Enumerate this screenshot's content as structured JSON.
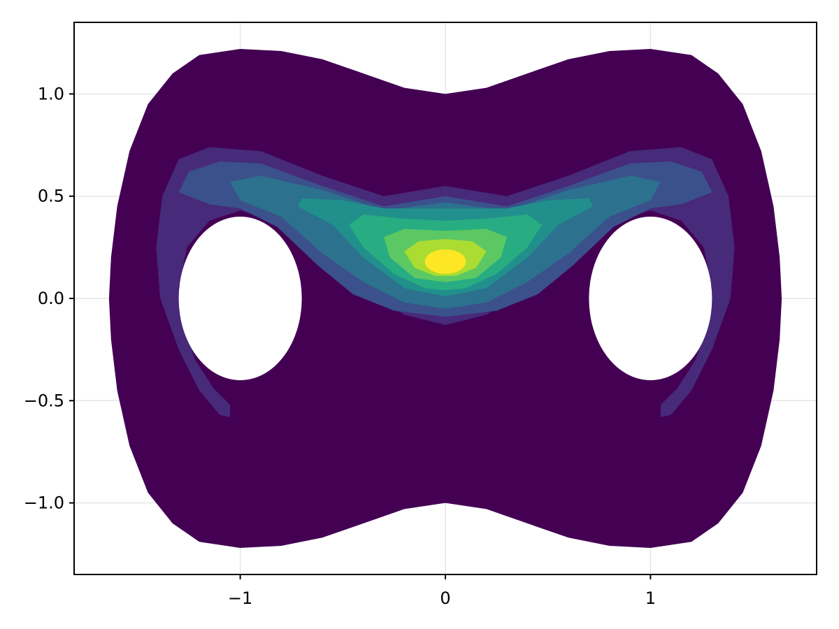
{
  "chart_data": {
    "type": "contourf",
    "title": "",
    "xlabel": "",
    "ylabel": "",
    "xlim": [
      -1.81,
      1.81
    ],
    "ylim": [
      -1.35,
      1.35
    ],
    "grid": true,
    "x_ticks": [
      -1,
      0,
      1
    ],
    "x_tick_labels": [
      "−1",
      "0",
      "1"
    ],
    "y_ticks": [
      -1.0,
      -0.5,
      0.0,
      0.5,
      1.0
    ],
    "y_tick_labels": [
      "−1.0",
      "−0.5",
      "0.0",
      "0.5",
      "1.0"
    ],
    "colormap": "viridis",
    "levels": [
      {
        "index": 0,
        "color": "#440154"
      },
      {
        "index": 1,
        "color": "#472a7a"
      },
      {
        "index": 2,
        "color": "#3b518b"
      },
      {
        "index": 3,
        "color": "#2c718e"
      },
      {
        "index": 4,
        "color": "#21908d"
      },
      {
        "index": 5,
        "color": "#27ad81"
      },
      {
        "index": 6,
        "color": "#5cc863"
      },
      {
        "index": 7,
        "color": "#aadc32"
      },
      {
        "index": 8,
        "color": "#fde725"
      }
    ],
    "domain": {
      "outer_boundary": {
        "description": "peanut-shaped outer region",
        "x_extent": [
          -1.65,
          1.65
        ],
        "y_extent": [
          -1.22,
          1.22
        ],
        "top_center_y": 1.0,
        "bottom_center_y": -1.0
      },
      "holes": [
        {
          "center": [
            -1.0,
            0.0
          ],
          "rx": 0.3,
          "ry": 0.4
        },
        {
          "center": [
            1.0,
            0.0
          ],
          "rx": 0.3,
          "ry": 0.4
        }
      ]
    },
    "peak": {
      "x": 0.0,
      "y": 0.18
    }
  }
}
